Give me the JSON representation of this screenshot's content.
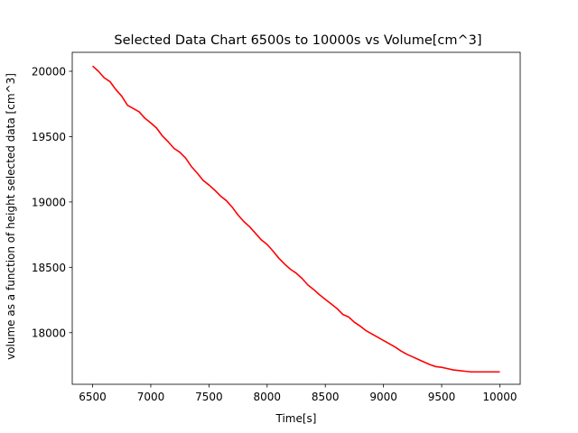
{
  "chart_data": {
    "type": "line",
    "title": "Selected Data Chart 6500s to 10000s vs Volume[cm^3]",
    "xlabel": "Time[s]",
    "ylabel": "volume as a function of height selected data [cm^3]",
    "xlim": [
      6325,
      10175
    ],
    "ylim": [
      17605,
      20145
    ],
    "x_ticks": [
      6500,
      7000,
      7500,
      8000,
      8500,
      9000,
      9500,
      10000
    ],
    "y_ticks": [
      18000,
      18500,
      19000,
      19500,
      20000
    ],
    "grid": false,
    "series": [
      {
        "color": "#ff0000",
        "x": [
          6500,
          6550,
          6600,
          6650,
          6700,
          6750,
          6800,
          6850,
          6900,
          6950,
          7000,
          7050,
          7100,
          7150,
          7200,
          7250,
          7300,
          7350,
          7400,
          7450,
          7500,
          7550,
          7600,
          7650,
          7700,
          7750,
          7800,
          7850,
          7900,
          7950,
          8000,
          8050,
          8100,
          8150,
          8200,
          8250,
          8300,
          8350,
          8400,
          8450,
          8500,
          8550,
          8600,
          8650,
          8700,
          8750,
          8800,
          8850,
          8900,
          8950,
          9000,
          9050,
          9100,
          9150,
          9200,
          9250,
          9300,
          9350,
          9400,
          9450,
          9500,
          9550,
          9600,
          9650,
          9700,
          9750,
          9800,
          9850,
          9900,
          9950,
          10000
        ],
        "values": [
          20040,
          20000,
          19950,
          19920,
          19860,
          19810,
          19740,
          19715,
          19690,
          19640,
          19605,
          19565,
          19505,
          19460,
          19410,
          19380,
          19335,
          19270,
          19220,
          19165,
          19130,
          19090,
          19045,
          19010,
          18960,
          18900,
          18850,
          18810,
          18760,
          18710,
          18675,
          18625,
          18570,
          18525,
          18485,
          18455,
          18415,
          18365,
          18330,
          18290,
          18255,
          18220,
          18185,
          18140,
          18120,
          18080,
          18050,
          18015,
          17990,
          17965,
          17940,
          17915,
          17890,
          17860,
          17835,
          17815,
          17795,
          17775,
          17755,
          17740,
          17735,
          17725,
          17715,
          17710,
          17705,
          17700,
          17700,
          17700,
          17700,
          17700,
          17700
        ]
      }
    ]
  }
}
